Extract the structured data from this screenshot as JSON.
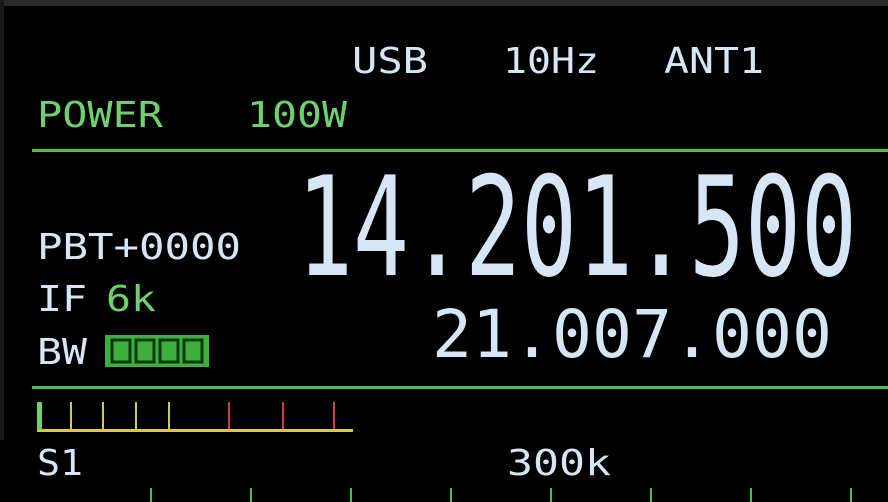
{
  "header": {
    "mode": "USB",
    "step": "10Hz",
    "antenna": "ANT1"
  },
  "power": {
    "label": "POWER",
    "value": "100W"
  },
  "pbt": "PBT+0000",
  "filter": {
    "if_label": "IF",
    "if_value": "6k",
    "bw_label": "BW"
  },
  "frequency": {
    "main": "14.201.500",
    "sub": "21.007.000"
  },
  "meter": {
    "label": "S1",
    "span": "300k"
  }
}
